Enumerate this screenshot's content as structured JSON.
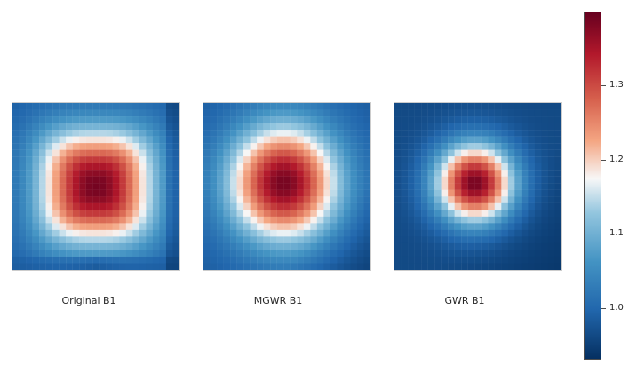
{
  "chart_data": {
    "type": "heatmap",
    "colormap": "RdBu_r",
    "grid": false,
    "panels": [
      {
        "title": "Original B1",
        "shape": "rounded-square peak centered",
        "range": [
          0.95,
          1.4
        ],
        "grid_size": [
          25,
          25
        ]
      },
      {
        "title": "MGWR B1",
        "shape": "circular peak centered",
        "range": [
          0.95,
          1.4
        ],
        "grid_size": [
          25,
          25
        ]
      },
      {
        "title": "GWR B1",
        "shape": "compact peak centered",
        "range": [
          0.95,
          1.4
        ],
        "grid_size": [
          25,
          25
        ]
      }
    ],
    "colorbar": {
      "range": [
        0.93,
        1.4
      ],
      "ticks": [
        "1.0",
        "1.1",
        "1.2",
        "1.3"
      ],
      "tick_values": [
        1.0,
        1.1,
        1.2,
        1.3
      ]
    }
  }
}
